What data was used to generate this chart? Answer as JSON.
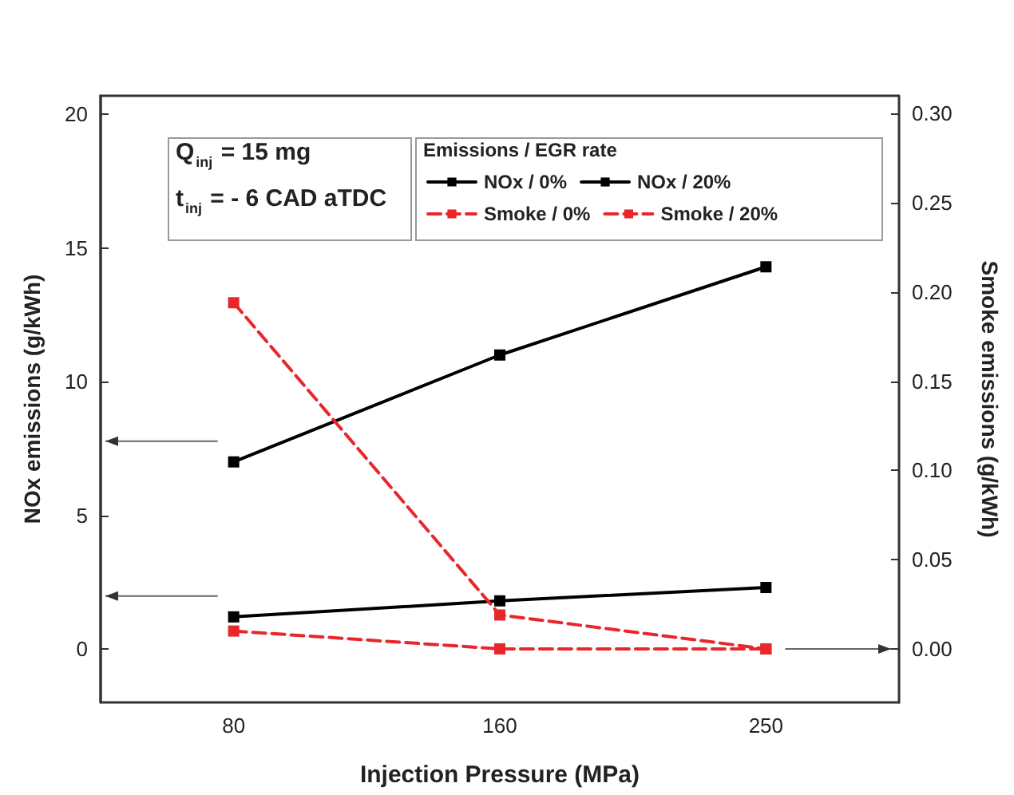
{
  "chart_data": {
    "type": "line",
    "categories": [
      "80",
      "160",
      "250"
    ],
    "xlabel": "Injection Pressure (MPa)",
    "ylabel": "NOx emissions (g/kWh)",
    "y2label": "Smoke emissions (g/kWh)",
    "legend_title": "Emissions / EGR rate",
    "legend": "top right",
    "annotations": [
      "Q$_{inj}$ = 15 mg",
      "t$_{inj}$ = - 6 CAD aTDC"
    ],
    "ylim": [
      -2,
      20.7
    ],
    "yticks": [
      0,
      5,
      10,
      15,
      20
    ],
    "y2lim": [
      -0.03,
      0.31
    ],
    "y2ticks": [
      {
        "value": 0,
        "label": "0.00"
      },
      {
        "value": 0.05,
        "label": "0.05"
      },
      {
        "value": 0.1,
        "label": "0.10"
      },
      {
        "value": 0.15,
        "label": "0.15"
      },
      {
        "value": 0.2,
        "label": "0.20"
      },
      {
        "value": 0.25,
        "label": "0.25"
      },
      {
        "value": 0.3,
        "label": "0.30"
      }
    ],
    "grid": false,
    "marker": "square",
    "series": [
      {
        "name": "NOx / 0%",
        "color": "#000000",
        "values": [
          7.0,
          11.0,
          14.3
        ],
        "line_style": "solid"
      },
      {
        "name": "NOx / 20%",
        "color": "#000000",
        "values": [
          1.2,
          1.8,
          2.3
        ],
        "line_style": "solid"
      },
      {
        "name": "Smoke / 0%",
        "color": "#e8262b",
        "values": [
          0.01,
          0.0,
          0.0
        ],
        "axis": "y2",
        "line_style": "dashed"
      },
      {
        "name": "Smoke / 20%",
        "color": "#e8262b",
        "values": [
          0.194,
          0.019,
          0.0
        ],
        "axis": "y2",
        "line_style": "dashed"
      }
    ]
  }
}
